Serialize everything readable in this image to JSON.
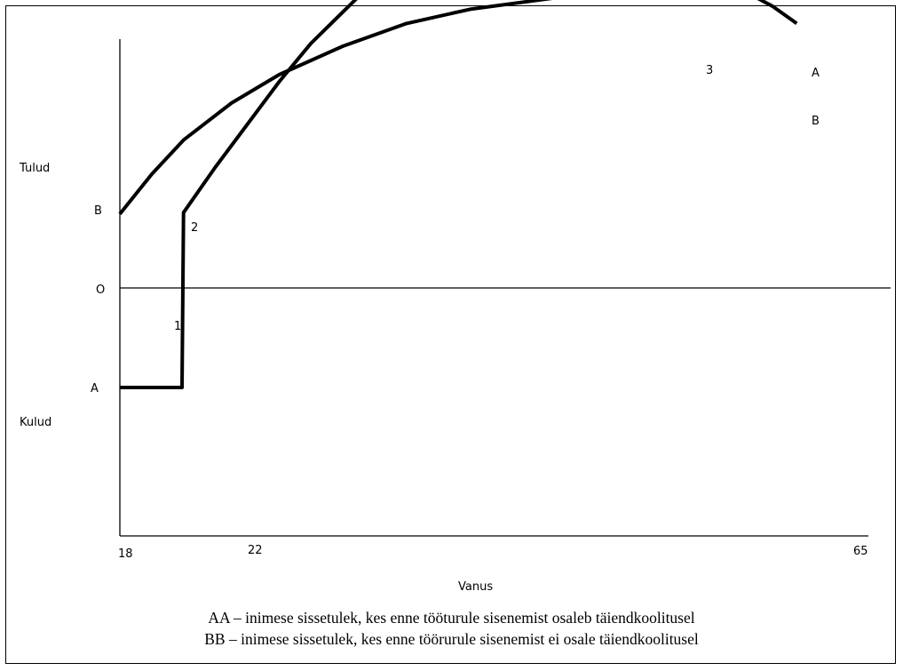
{
  "chart_data": {
    "type": "line",
    "xlabel": "Vanus",
    "x_ticks": [
      "18",
      "22",
      "65"
    ],
    "y_labels": {
      "top": "Tulud",
      "origin": "O",
      "bottom": "Kulud",
      "b_level": "B",
      "a_level": "A"
    },
    "series": [
      {
        "name": "A",
        "points": [
          [
            18,
            -0.7
          ],
          [
            21.9,
            -0.7
          ],
          [
            22,
            0.53
          ],
          [
            24,
            0.85
          ],
          [
            26,
            1.15
          ],
          [
            28,
            1.45
          ],
          [
            30,
            1.72
          ],
          [
            33,
            2.05
          ],
          [
            36,
            2.3
          ],
          [
            40,
            2.5
          ],
          [
            44,
            2.65
          ],
          [
            48,
            2.78
          ],
          [
            52,
            2.86
          ],
          [
            55,
            2.88
          ],
          [
            57,
            2.82
          ],
          [
            59,
            2.68
          ],
          [
            60.5,
            2.5
          ]
        ]
      },
      {
        "name": "B",
        "points": [
          [
            18,
            0.52
          ],
          [
            20,
            0.8
          ],
          [
            22,
            1.04
          ],
          [
            25,
            1.3
          ],
          [
            28,
            1.5
          ],
          [
            32,
            1.7
          ],
          [
            36,
            1.86
          ],
          [
            40,
            1.96
          ],
          [
            44,
            2.02
          ],
          [
            48,
            2.08
          ],
          [
            52,
            2.12
          ],
          [
            55,
            2.14
          ],
          [
            57,
            2.1
          ],
          [
            59,
            1.98
          ],
          [
            60.5,
            1.86
          ]
        ]
      }
    ],
    "region_labels": [
      "1",
      "2",
      "3"
    ],
    "end_labels": [
      "A",
      "B"
    ]
  },
  "legend": {
    "line1": "AA – inimese sissetulek, kes enne tööturule sisenemist osaleb täiendkoolitusel",
    "line2": "BB – inimese sissetulek, kes enne töörurule sisenemist ei osale täiendkoolitusel"
  }
}
